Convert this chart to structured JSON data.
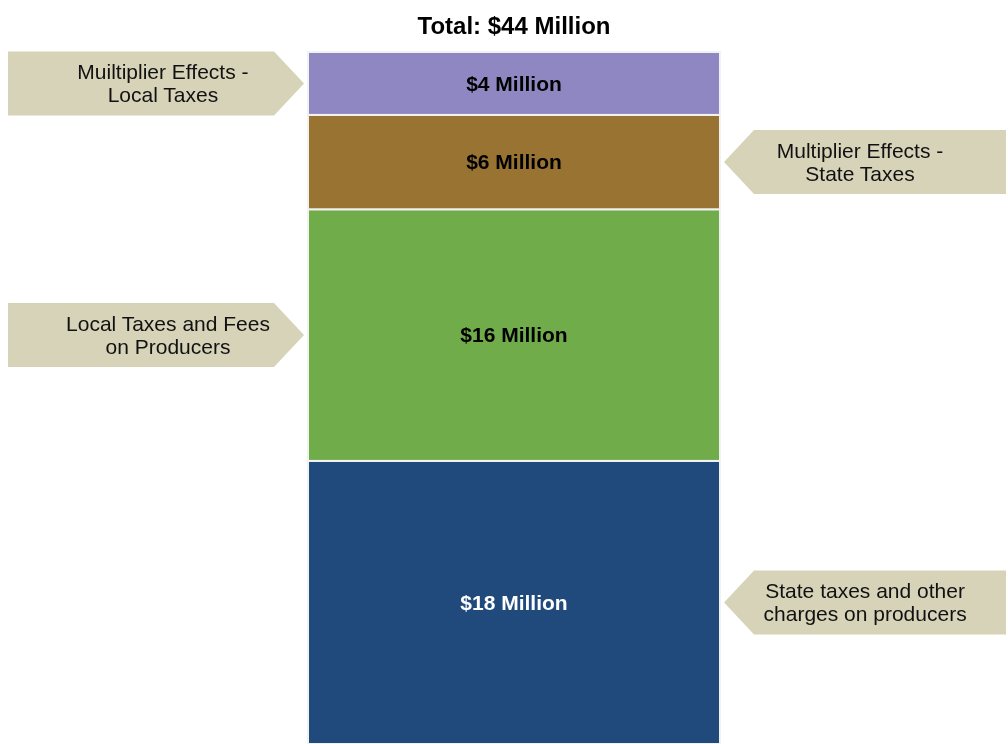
{
  "chart_data": {
    "type": "bar",
    "stacked": true,
    "categories": [
      null
    ],
    "totals": [
      "Total: $44 Million"
    ],
    "legend": false,
    "series": [
      {
        "name": "State taxes and other charges on producers",
        "color": "#214a7c",
        "values": [
          18
        ],
        "value_labels": [
          "$18 Million"
        ]
      },
      {
        "name": "Local Taxes and Fees on Producers",
        "color": "#70ac4a",
        "values": [
          16
        ],
        "value_labels": [
          "$16 Million"
        ]
      },
      {
        "name": "Multiplier Effects - State Taxes",
        "color": "#987331",
        "values": [
          6
        ],
        "value_labels": [
          "$6 Million"
        ]
      },
      {
        "name": "Muiltiplier Effects - Local Taxes",
        "color": "#8f87c1",
        "values": [
          4
        ],
        "value_labels": [
          "$4 Million"
        ]
      }
    ]
  }
}
